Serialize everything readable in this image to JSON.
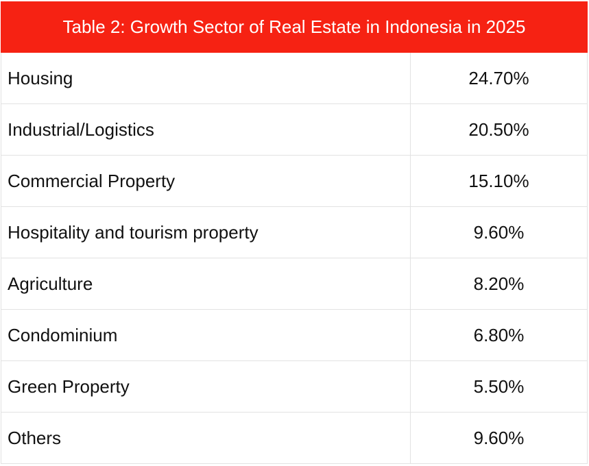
{
  "table": {
    "title": "Table 2: Growth Sector of Real Estate in Indonesia in 2025",
    "header_color": "#f62213",
    "rows": [
      {
        "label": "Housing",
        "value": "24.70%"
      },
      {
        "label": "Industrial/Logistics",
        "value": "20.50%"
      },
      {
        "label": "Commercial Property",
        "value": "15.10%"
      },
      {
        "label": "Hospitality and tourism property",
        "value": "9.60%"
      },
      {
        "label": "Agriculture",
        "value": "8.20%"
      },
      {
        "label": "Condominium",
        "value": "6.80%"
      },
      {
        "label": "Green Property",
        "value": "5.50%"
      },
      {
        "label": "Others",
        "value": "9.60%"
      }
    ]
  }
}
